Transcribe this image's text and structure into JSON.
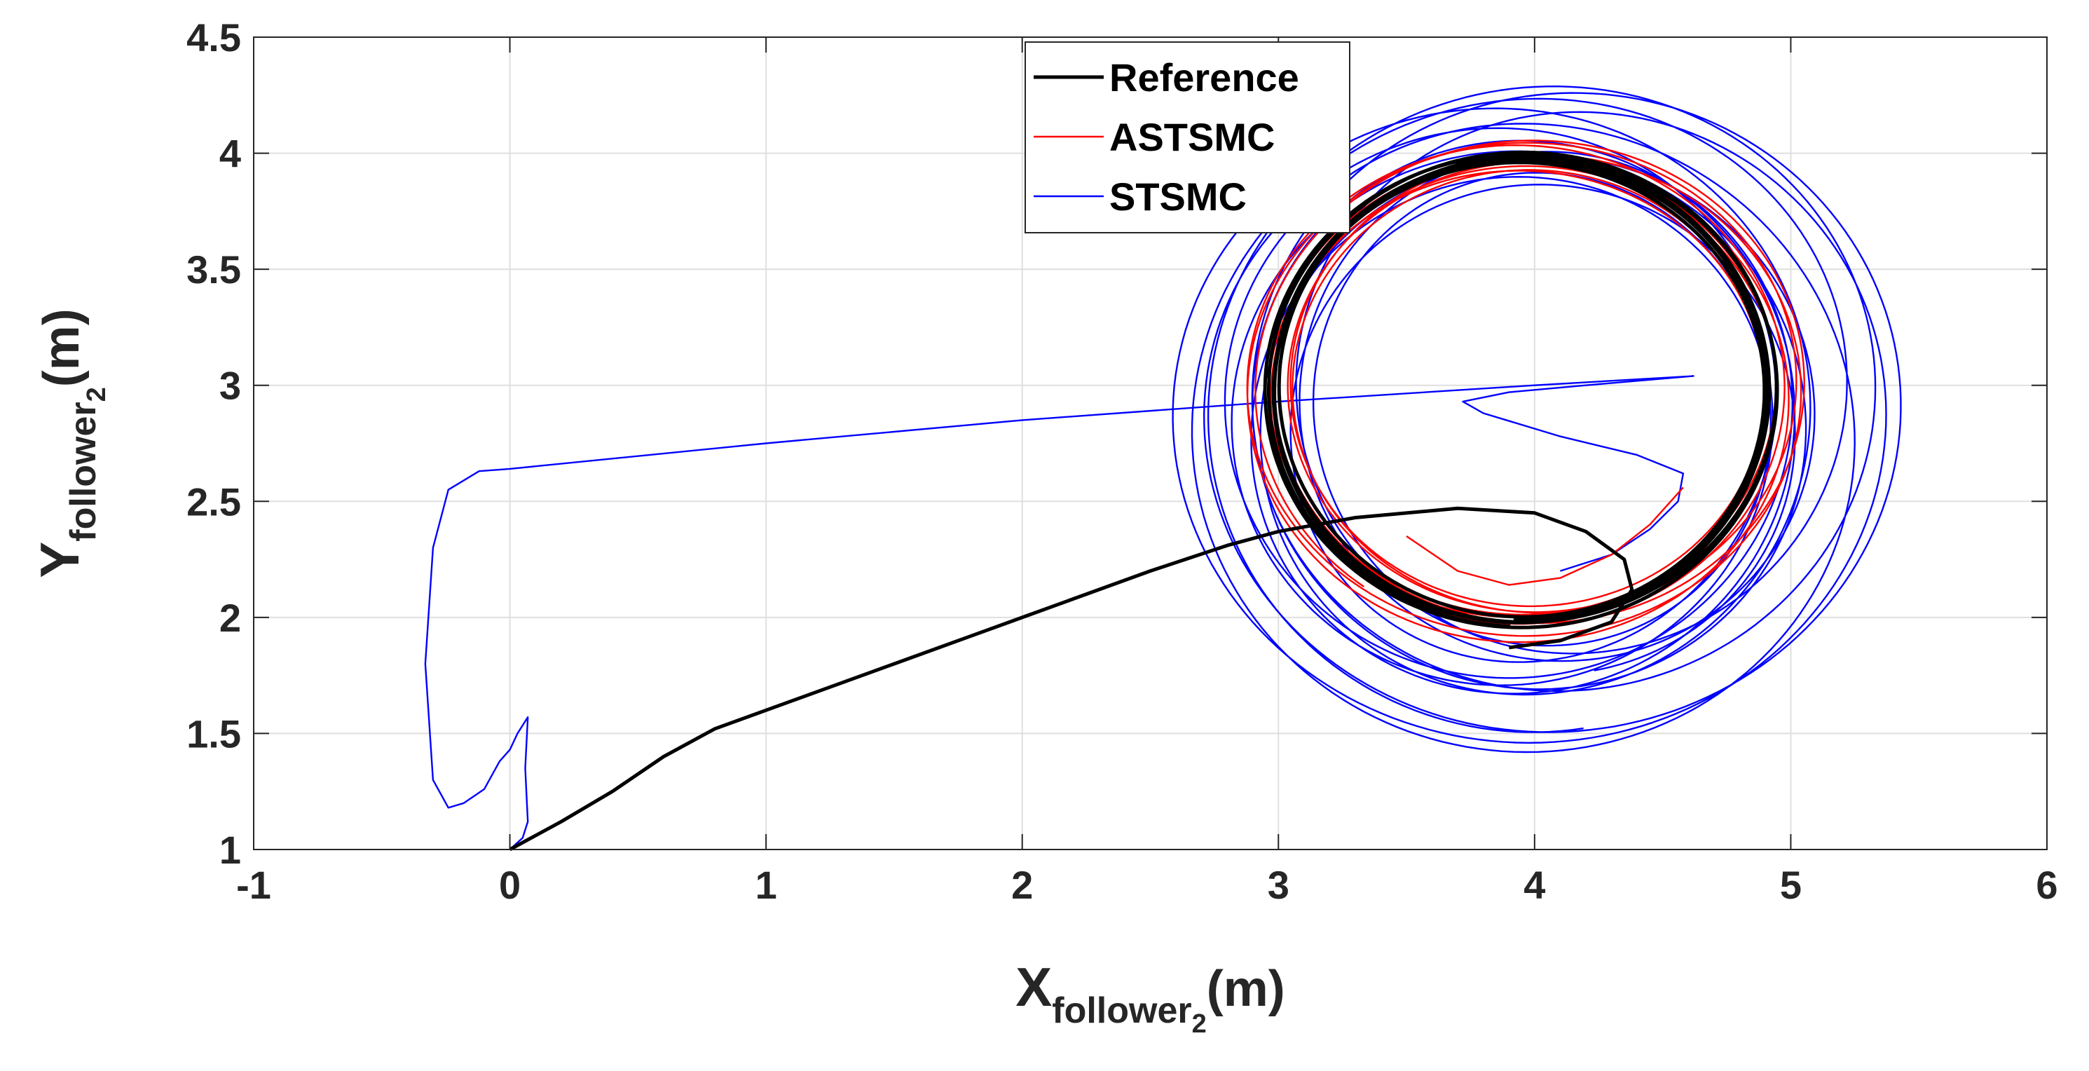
{
  "chart_data": {
    "type": "line",
    "title": "",
    "xlabel": {
      "main": "X",
      "sub": "follower",
      "subsub": "2",
      "unit": "(m)"
    },
    "ylabel": {
      "main": "Y",
      "sub": "follower",
      "subsub": "2",
      "unit": "(m)"
    },
    "xlim": [
      -1,
      6
    ],
    "ylim": [
      1,
      4.5
    ],
    "xticks": [
      -1,
      0,
      1,
      2,
      3,
      4,
      5,
      6
    ],
    "xtick_labels": [
      "-1",
      "0",
      "1",
      "2",
      "3",
      "4",
      "5",
      "6"
    ],
    "yticks": [
      1,
      1.5,
      2,
      2.5,
      3,
      3.5,
      4,
      4.5
    ],
    "ytick_labels": [
      "1",
      "1.5",
      "2",
      "2.5",
      "3",
      "3.5",
      "4",
      "4.5"
    ],
    "grid": true,
    "legend_position": "top-center",
    "series": [
      {
        "name": "Reference",
        "color": "#000000",
        "pattern": "transient-then-orbit",
        "transient": [
          [
            0,
            1
          ],
          [
            0.2,
            1.12
          ],
          [
            0.4,
            1.25
          ],
          [
            0.6,
            1.4
          ],
          [
            0.8,
            1.52
          ],
          [
            1,
            1.6
          ],
          [
            1.5,
            1.8
          ],
          [
            2,
            2
          ],
          [
            2.5,
            2.2
          ],
          [
            2.8,
            2.31
          ],
          [
            3,
            2.37
          ],
          [
            3.3,
            2.43
          ],
          [
            3.7,
            2.47
          ],
          [
            4,
            2.45
          ],
          [
            4.2,
            2.37
          ],
          [
            4.35,
            2.25
          ],
          [
            4.38,
            2.12
          ],
          [
            4.3,
            1.98
          ],
          [
            4.1,
            1.9
          ],
          [
            3.9,
            1.87
          ]
        ],
        "orbit": {
          "center": [
            3.95,
            2.98
          ],
          "rx": 0.97,
          "ry": 1.0,
          "loops": 6,
          "jitter": 0.02
        }
      },
      {
        "name": "ASTSMC",
        "color": "#ff0000",
        "pattern": "transient-then-orbit",
        "transient": [
          [
            4.58,
            2.56
          ],
          [
            4.45,
            2.4
          ],
          [
            4.3,
            2.27
          ],
          [
            4.1,
            2.17
          ],
          [
            3.9,
            2.14
          ],
          [
            3.7,
            2.2
          ],
          [
            3.5,
            2.35
          ]
        ],
        "orbit": {
          "center": [
            3.97,
            2.98
          ],
          "rx": 1.0,
          "ry": 1.0,
          "loops": 10,
          "jitter": 0.06
        }
      },
      {
        "name": "STSMC",
        "color": "#0000ff",
        "pattern": "transient-then-orbit",
        "transient": [
          [
            0,
            1
          ],
          [
            0.05,
            1.05
          ],
          [
            0.07,
            1.12
          ],
          [
            0.06,
            1.35
          ],
          [
            0.07,
            1.57
          ],
          [
            0.03,
            1.5
          ],
          [
            0,
            1.43
          ],
          [
            -0.04,
            1.38
          ],
          [
            -0.1,
            1.26
          ],
          [
            -0.18,
            1.2
          ],
          [
            -0.24,
            1.18
          ],
          [
            -0.3,
            1.3
          ],
          [
            -0.33,
            1.8
          ],
          [
            -0.3,
            2.3
          ],
          [
            -0.24,
            2.55
          ],
          [
            -0.12,
            2.63
          ],
          [
            0,
            2.64
          ],
          [
            1,
            2.75
          ],
          [
            2,
            2.85
          ],
          [
            3,
            2.93
          ],
          [
            4,
            3
          ],
          [
            4.62,
            3.04
          ],
          [
            4.2,
            3.0
          ],
          [
            3.9,
            2.97
          ],
          [
            3.72,
            2.93
          ],
          [
            3.8,
            2.88
          ],
          [
            4.1,
            2.78
          ],
          [
            4.4,
            2.7
          ],
          [
            4.58,
            2.62
          ],
          [
            4.56,
            2.5
          ],
          [
            4.45,
            2.38
          ],
          [
            4.3,
            2.27
          ],
          [
            4.1,
            2.2
          ]
        ],
        "orbit": {
          "center": [
            4.0,
            2.88
          ],
          "rx": 1.12,
          "ry": 1.2,
          "loops": 14,
          "jitter": 0.18
        }
      }
    ]
  }
}
